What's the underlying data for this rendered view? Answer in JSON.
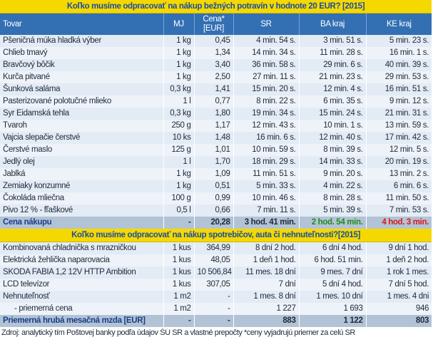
{
  "section1": {
    "title": "Koľko musíme odpracovať na nákup bežných potravín v hodnote 20 EUR? [2015]",
    "headers": [
      "Tovar",
      "MJ",
      "Cena*\n[EUR]",
      "SR",
      "BA kraj",
      "KE kraj"
    ],
    "rows": [
      [
        "Pšeničná múka hladká výber",
        "1 kg",
        "0,45",
        "4 min. 54 s.",
        "3 min. 51 s.",
        "5 min. 23 s."
      ],
      [
        "Chlieb tmavý",
        "1 kg",
        "1,34",
        "14 min. 34 s.",
        "11 min. 28 s.",
        "16 min. 1 s."
      ],
      [
        "Bravčový bôčik",
        "1 kg",
        "3,40",
        "36 min. 58 s.",
        "29 min. 6 s.",
        "40 min. 39 s."
      ],
      [
        "Kurča pitvané",
        "1 kg",
        "2,50",
        "27 min. 11 s.",
        "21 min. 23 s.",
        "29 min. 53 s."
      ],
      [
        "Šunková saláma",
        "0,3 kg",
        "1,41",
        "15 min. 20 s.",
        "12 min. 4 s.",
        "16 min. 51 s."
      ],
      [
        "Pasterizované polotučné mlieko",
        "1 l",
        "0,77",
        "8 min. 22 s.",
        "6 min. 35 s.",
        "9 min. 12 s."
      ],
      [
        "Syr Eidamská tehla",
        "0,3 kg",
        "1,80",
        "19 min. 34 s.",
        "15 min. 24 s.",
        "21 min. 31 s."
      ],
      [
        "Tvaroh",
        "250 g",
        "1,17",
        "12 min. 43 s.",
        "10 min. 1 s.",
        "13 min. 59 s."
      ],
      [
        "Vajcia slepačie čerstvé",
        "10 ks",
        "1,48",
        "16 min. 6 s.",
        "12 min. 40 s.",
        "17 min. 42 s."
      ],
      [
        "Čerstvé maslo",
        "125 g",
        "1,01",
        "10 min. 59 s.",
        "8 min. 39 s.",
        "12 min. 5 s."
      ],
      [
        "Jedlý olej",
        "1 l",
        "1,70",
        "18 min. 29 s.",
        "14 min. 33 s.",
        "20 min. 19 s."
      ],
      [
        "Jablká",
        "1 kg",
        "1,09",
        "11 min. 51 s.",
        "9 min. 20 s.",
        "13 min. 2 s."
      ],
      [
        "Zemiaky konzumné",
        "1 kg",
        "0,51",
        "5 min. 33 s.",
        "4 min. 22 s.",
        "6 min. 6 s."
      ],
      [
        "Čokoláda mliečna",
        "100 g",
        "0,99",
        "10 min. 46 s.",
        "8 min. 28 s.",
        "11 min. 50 s."
      ],
      [
        "Pivo 12 % - fľaškové",
        "0,5 l",
        "0,66",
        "7 min. 11 s.",
        "5 min. 39 s.",
        "7 min. 53 s."
      ]
    ],
    "total": [
      "Cena nákupu",
      "-",
      "20,28",
      "3 hod. 41 min.",
      "2 hod. 54 min.",
      "4 hod. 3 min."
    ]
  },
  "section2": {
    "title": "Koľko musíme odpracovať na nákup spotrebičov, auta či nehnuteľnosti?[2015]",
    "rows": [
      [
        "Kombinovaná chladnička s mrazničkou",
        "1 kus",
        "364,99",
        "8 dní 2 hod.",
        "6 dní 4 hod.",
        "9 dní 1 hod."
      ],
      [
        "Elektrická žehlička naparovacia",
        "1 kus",
        "48,05",
        "1 deň 1 hod.",
        "6 hod. 51 min.",
        "1 deň 2 hod."
      ],
      [
        "SKODA FABIA 1,2 12V HTTP Ambition",
        "1 kus",
        "10 506,84",
        "11 mes. 18 dní",
        "9 mes. 7 dní",
        "1 rok 1 mes."
      ],
      [
        "LCD televízor",
        "1 kus",
        "307,05",
        "7 dní",
        "5 dní 4 hod.",
        "7 dní 5 hod."
      ],
      [
        "Nehnuteľnosť",
        "1 m2",
        "-",
        "1 mes. 8 dní",
        "1 mes. 10 dní",
        "1 mes. 4 dni"
      ],
      [
        "- priemerná cena",
        "1 m2",
        "-",
        "1 227",
        "1 693",
        "946"
      ]
    ],
    "total": [
      "Priemerná hrubá mesačná mzda [EUR]",
      "-",
      "-",
      "883",
      "1 122",
      "803"
    ]
  },
  "source": "Zdroj: analytický tím Poštovej banky podľa údajov ŠÚ SR a vlastné prepočty  *ceny vyjadrujú priemer za celú SR",
  "colors": {
    "title_bg": "#f5d800",
    "title_text": "#1a4ea0",
    "header_bg": "#336fb3",
    "row_bg": "#e3ebf5",
    "total_bg": "#b3c3d6",
    "ba_green": "#2aa02a",
    "ke_red": "#e02020"
  }
}
